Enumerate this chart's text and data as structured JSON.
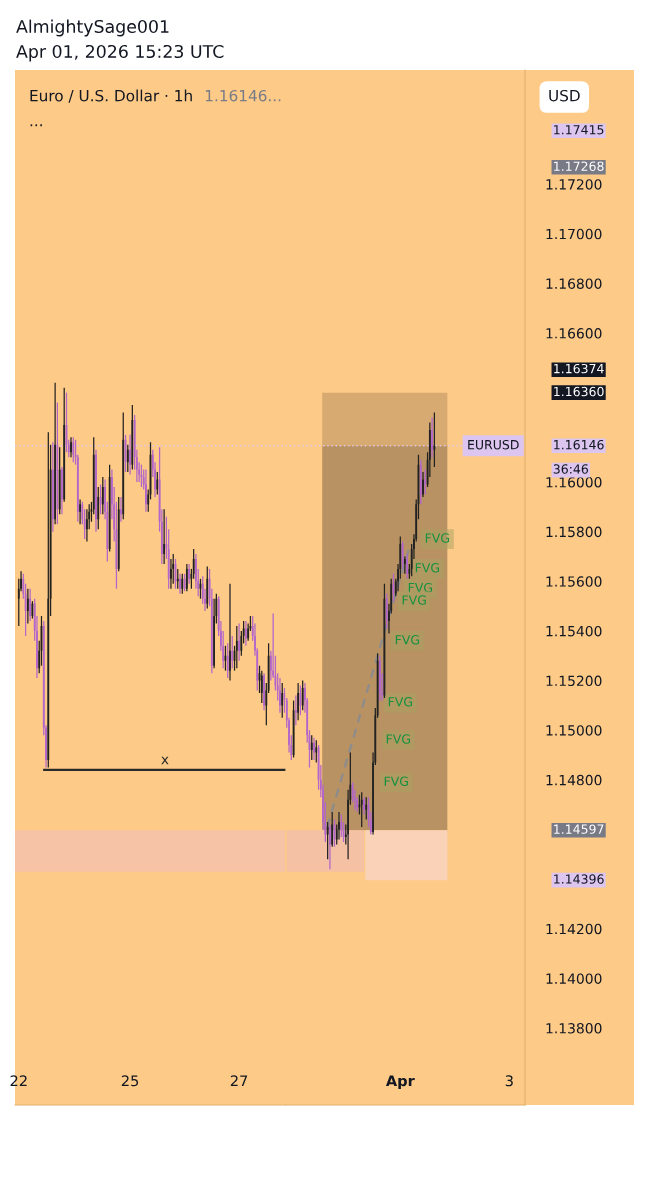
{
  "chart_data": [
    {
      "type": "candlestick",
      "title": "Euro / U.S. Dollar · 1h",
      "subtitle": "1.16146...",
      "annotations": [
        "AlmightySage001",
        "Apr 01, 2026 15:23 UTC",
        "..."
      ],
      "x": [
        "2026-03-22T23:00",
        "2026-03-23T00:00",
        "2026-03-23T01:00",
        "2026-03-23T02:00",
        "2026-03-23T03:00",
        "2026-03-23T04:00",
        "2026-03-23T05:00",
        "2026-03-23T06:00",
        "2026-03-23T07:00",
        "2026-03-23T08:00",
        "2026-03-23T09:00",
        "2026-03-23T10:00",
        "2026-03-23T11:00",
        "2026-03-23T12:00",
        "2026-03-23T13:00",
        "2026-03-23T14:00",
        "2026-03-23T15:00",
        "2026-03-23T16:00",
        "2026-03-23T17:00",
        "2026-03-23T18:00",
        "2026-03-23T19:00",
        "2026-03-23T20:00",
        "2026-03-23T21:00",
        "2026-03-23T22:00",
        "2026-03-23T23:00",
        "2026-03-24T00:00",
        "2026-03-24T01:00",
        "2026-03-24T02:00",
        "2026-03-24T03:00",
        "2026-03-24T04:00",
        "2026-03-24T05:00",
        "2026-03-24T06:00",
        "2026-03-24T07:00",
        "2026-03-24T08:00",
        "2026-03-24T09:00",
        "2026-03-24T10:00",
        "2026-03-24T11:00",
        "2026-03-24T12:00",
        "2026-03-24T13:00",
        "2026-03-24T14:00",
        "2026-03-24T15:00",
        "2026-03-24T16:00",
        "2026-03-24T17:00",
        "2026-03-24T18:00",
        "2026-03-24T19:00",
        "2026-03-24T20:00",
        "2026-03-24T21:00",
        "2026-03-24T22:00",
        "2026-03-24T23:00",
        "2026-03-25T00:00",
        "2026-03-25T01:00",
        "2026-03-25T02:00",
        "2026-03-25T03:00",
        "2026-03-25T04:00",
        "2026-03-25T05:00",
        "2026-03-25T06:00",
        "2026-03-25T07:00",
        "2026-03-25T08:00",
        "2026-03-25T09:00",
        "2026-03-25T10:00",
        "2026-03-25T11:00",
        "2026-03-25T12:00",
        "2026-03-25T13:00",
        "2026-03-25T14:00",
        "2026-03-25T15:00",
        "2026-03-25T16:00",
        "2026-03-25T17:00",
        "2026-03-25T18:00",
        "2026-03-25T19:00",
        "2026-03-25T20:00",
        "2026-03-25T21:00",
        "2026-03-25T22:00",
        "2026-03-25T23:00",
        "2026-03-26T00:00",
        "2026-03-26T01:00",
        "2026-03-26T02:00",
        "2026-03-26T03:00",
        "2026-03-26T04:00",
        "2026-03-26T05:00",
        "2026-03-26T06:00",
        "2026-03-26T07:00",
        "2026-03-26T08:00",
        "2026-03-26T09:00",
        "2026-03-26T10:00",
        "2026-03-26T11:00",
        "2026-03-26T12:00",
        "2026-03-26T13:00",
        "2026-03-26T14:00",
        "2026-03-26T15:00",
        "2026-03-26T16:00",
        "2026-03-26T17:00",
        "2026-03-26T18:00",
        "2026-03-26T19:00",
        "2026-03-26T20:00",
        "2026-03-26T21:00",
        "2026-03-26T22:00",
        "2026-03-26T23:00",
        "2026-03-27T00:00",
        "2026-03-27T01:00",
        "2026-03-27T02:00",
        "2026-03-27T03:00",
        "2026-03-27T04:00",
        "2026-03-27T05:00",
        "2026-03-27T06:00",
        "2026-03-27T07:00",
        "2026-03-27T08:00",
        "2026-03-27T09:00",
        "2026-03-27T10:00",
        "2026-03-27T11:00",
        "2026-03-27T12:00",
        "2026-03-27T13:00",
        "2026-03-27T14:00",
        "2026-03-27T15:00",
        "2026-03-27T16:00",
        "2026-03-27T17:00",
        "2026-03-27T18:00",
        "2026-03-27T19:00",
        "2026-03-27T20:00"
      ],
      "ohlc": [
        [
          1.1553,
          1.1561,
          1.1542,
          1.1557
        ],
        [
          1.1557,
          1.1564,
          1.1556,
          1.1561
        ],
        [
          1.1561,
          1.1563,
          1.1553,
          1.1555
        ],
        [
          1.1555,
          1.1559,
          1.1538,
          1.1548
        ],
        [
          1.1548,
          1.1557,
          1.1543,
          1.1553
        ],
        [
          1.1553,
          1.1557,
          1.1544,
          1.1546
        ],
        [
          1.1546,
          1.1552,
          1.1545,
          1.1551
        ],
        [
          1.1551,
          1.1553,
          1.1536,
          1.154
        ],
        [
          1.154,
          1.1546,
          1.1521,
          1.1525
        ],
        [
          1.1525,
          1.1536,
          1.1523,
          1.1532
        ],
        [
          1.1532,
          1.1546,
          1.1526,
          1.1542
        ],
        [
          1.1542,
          1.1544,
          1.1498,
          1.1501
        ],
        [
          1.1501,
          1.1502,
          1.1485,
          1.1488
        ],
        [
          1.1488,
          1.162,
          1.1485,
          1.1553
        ],
        [
          1.1553,
          1.1615,
          1.1546,
          1.1605
        ],
        [
          1.1605,
          1.1616,
          1.158,
          1.1585
        ],
        [
          1.1585,
          1.164,
          1.1583,
          1.1615
        ],
        [
          1.1615,
          1.1632,
          1.1583,
          1.1589
        ],
        [
          1.1589,
          1.1614,
          1.1587,
          1.1605
        ],
        [
          1.1605,
          1.1606,
          1.1587,
          1.1593
        ],
        [
          1.1593,
          1.1638,
          1.1592,
          1.1623
        ],
        [
          1.1623,
          1.1636,
          1.1612,
          1.1615
        ],
        [
          1.1615,
          1.1617,
          1.161,
          1.1612
        ],
        [
          1.1612,
          1.1618,
          1.161,
          1.1616
        ],
        [
          1.1616,
          1.1618,
          1.1608,
          1.1611
        ],
        [
          1.1611,
          1.1617,
          1.1607,
          1.161
        ],
        [
          1.161,
          1.1611,
          1.1584,
          1.1588
        ],
        [
          1.1588,
          1.1593,
          1.1583,
          1.1591
        ],
        [
          1.1591,
          1.1592,
          1.1583,
          1.1585
        ],
        [
          1.1585,
          1.1589,
          1.1577,
          1.1581
        ],
        [
          1.1581,
          1.1589,
          1.1576,
          1.1585
        ],
        [
          1.1585,
          1.1591,
          1.1581,
          1.1588
        ],
        [
          1.1588,
          1.1592,
          1.1584,
          1.1589
        ],
        [
          1.1589,
          1.1618,
          1.1587,
          1.1611
        ],
        [
          1.1611,
          1.1613,
          1.158,
          1.1585
        ],
        [
          1.1585,
          1.1598,
          1.1581,
          1.1594
        ],
        [
          1.1594,
          1.1599,
          1.1587,
          1.1591
        ],
        [
          1.1591,
          1.1602,
          1.1587,
          1.1598
        ],
        [
          1.1598,
          1.1601,
          1.1585,
          1.1588
        ],
        [
          1.1588,
          1.1592,
          1.1568,
          1.1573
        ],
        [
          1.1573,
          1.1607,
          1.1572,
          1.1602
        ],
        [
          1.1602,
          1.1605,
          1.1585,
          1.1591
        ],
        [
          1.1591,
          1.1598,
          1.1576,
          1.1581
        ],
        [
          1.1581,
          1.1592,
          1.1557,
          1.1565
        ],
        [
          1.1565,
          1.1594,
          1.1564,
          1.1589
        ],
        [
          1.1589,
          1.1594,
          1.1584,
          1.1587
        ],
        [
          1.1587,
          1.1628,
          1.1585,
          1.1617
        ],
        [
          1.1617,
          1.1619,
          1.1604,
          1.1608
        ],
        [
          1.1608,
          1.1615,
          1.1604,
          1.1613
        ],
        [
          1.1613,
          1.1619,
          1.1603,
          1.1607
        ],
        [
          1.1607,
          1.1631,
          1.1605,
          1.1625
        ],
        [
          1.1625,
          1.1627,
          1.1605,
          1.161
        ],
        [
          1.161,
          1.1613,
          1.16,
          1.1605
        ],
        [
          1.1605,
          1.1608,
          1.16,
          1.1603
        ],
        [
          1.1603,
          1.1607,
          1.1598,
          1.1602
        ],
        [
          1.1602,
          1.1605,
          1.1597,
          1.1599
        ],
        [
          1.1599,
          1.1605,
          1.1588,
          1.1591
        ],
        [
          1.1591,
          1.1597,
          1.1588,
          1.1595
        ],
        [
          1.1595,
          1.1616,
          1.1593,
          1.1611
        ],
        [
          1.1611,
          1.1613,
          1.1602,
          1.1605
        ],
        [
          1.1605,
          1.1608,
          1.1594,
          1.1597
        ],
        [
          1.1597,
          1.1604,
          1.1595,
          1.1601
        ],
        [
          1.1601,
          1.1614,
          1.158,
          1.1584
        ],
        [
          1.1584,
          1.1589,
          1.1567,
          1.1571
        ],
        [
          1.1571,
          1.1589,
          1.1567,
          1.1575
        ],
        [
          1.1575,
          1.1586,
          1.1569,
          1.1573
        ],
        [
          1.1573,
          1.1581,
          1.1557,
          1.1561
        ],
        [
          1.1561,
          1.1569,
          1.1557,
          1.1565
        ],
        [
          1.1565,
          1.1571,
          1.1559,
          1.1567
        ],
        [
          1.1567,
          1.1569,
          1.1557,
          1.156
        ],
        [
          1.156,
          1.1565,
          1.1557,
          1.1561
        ],
        [
          1.1561,
          1.1563,
          1.1555,
          1.1557
        ],
        [
          1.1557,
          1.1563,
          1.1555,
          1.1561
        ],
        [
          1.1561,
          1.1563,
          1.1556,
          1.1557
        ],
        [
          1.1557,
          1.1567,
          1.1556,
          1.1565
        ],
        [
          1.1565,
          1.1567,
          1.1559,
          1.1561
        ],
        [
          1.1561,
          1.1565,
          1.1557,
          1.1563
        ],
        [
          1.1563,
          1.1573,
          1.1561,
          1.1569
        ],
        [
          1.1569,
          1.1571,
          1.1557,
          1.156
        ],
        [
          1.156,
          1.1565,
          1.1554,
          1.1557
        ],
        [
          1.1557,
          1.1561,
          1.1553,
          1.1559
        ],
        [
          1.1559,
          1.1562,
          1.1551,
          1.1553
        ],
        [
          1.1553,
          1.1557,
          1.1548,
          1.1551
        ],
        [
          1.1551,
          1.1566,
          1.1549,
          1.1561
        ],
        [
          1.1561,
          1.1565,
          1.155,
          1.1553
        ],
        [
          1.1553,
          1.1557,
          1.1523,
          1.1526
        ],
        [
          1.1526,
          1.1553,
          1.1525,
          1.1546
        ],
        [
          1.1546,
          1.1555,
          1.1543,
          1.1553
        ],
        [
          1.1553,
          1.1554,
          1.1538,
          1.154
        ],
        [
          1.154,
          1.1544,
          1.1532,
          1.1534
        ],
        [
          1.1534,
          1.154,
          1.1525,
          1.1528
        ],
        [
          1.1528,
          1.1534,
          1.1524,
          1.153
        ],
        [
          1.153,
          1.1535,
          1.1521,
          1.1524
        ],
        [
          1.1524,
          1.1559,
          1.152,
          1.1532
        ],
        [
          1.1532,
          1.1538,
          1.1525,
          1.1528
        ],
        [
          1.1528,
          1.1534,
          1.1524,
          1.1532
        ],
        [
          1.1532,
          1.1542,
          1.1525,
          1.1536
        ],
        [
          1.1536,
          1.1543,
          1.1528,
          1.1532
        ],
        [
          1.1532,
          1.154,
          1.153,
          1.1538
        ],
        [
          1.1538,
          1.1544,
          1.1535,
          1.1541
        ],
        [
          1.1541,
          1.1544,
          1.1534,
          1.1537
        ],
        [
          1.1537,
          1.1543,
          1.1536,
          1.1541
        ],
        [
          1.1541,
          1.1546,
          1.154,
          1.1542
        ],
        [
          1.1542,
          1.1546,
          1.1536,
          1.1538
        ],
        [
          1.1538,
          1.1543,
          1.153,
          1.1532
        ],
        [
          1.1532,
          1.1533,
          1.1516,
          1.152
        ],
        [
          1.152,
          1.1526,
          1.1515,
          1.1523
        ],
        [
          1.1515,
          1.1524,
          1.1511,
          1.1522
        ],
        [
          1.1522,
          1.1523,
          1.1508,
          1.151
        ],
        [
          1.151,
          1.1519,
          1.1502,
          1.1516
        ],
        [
          1.1516,
          1.1535,
          1.1515,
          1.153
        ],
        [
          1.153,
          1.1532,
          1.152,
          1.1524
        ],
        [
          1.1524,
          1.1547,
          1.1521,
          1.1522
        ],
        [
          1.1522,
          1.153,
          1.1516,
          1.1518
        ],
        [
          1.1518,
          1.1523,
          1.1512,
          1.1516
        ],
        [
          1.1516,
          1.1521,
          1.1507,
          1.151
        ],
        [
          1.151,
          1.1519,
          1.1505,
          1.1515
        ],
        [
          1.1515,
          1.1517,
          1.1507,
          1.1512
        ]
      ],
      "colors": [
        "#222222",
        "#222222",
        "#b266cc",
        "#b266cc",
        "#222222",
        "#b266cc",
        "#222222",
        "#b266cc",
        "#b266cc",
        "#222222",
        "#222222",
        "#b266cc",
        "#b266cc",
        "#222222",
        "#222222",
        "#b266cc",
        "#222222",
        "#b266cc",
        "#222222",
        "#b266cc",
        "#222222",
        "#b266cc",
        "#b266cc",
        "#222222",
        "#b266cc",
        "#b266cc",
        "#b266cc",
        "#222222",
        "#b266cc",
        "#b266cc",
        "#222222",
        "#222222",
        "#222222",
        "#222222",
        "#b266cc",
        "#222222",
        "#b266cc",
        "#222222",
        "#b266cc",
        "#b266cc",
        "#222222",
        "#b266cc",
        "#b266cc",
        "#b266cc",
        "#222222",
        "#b266cc",
        "#222222",
        "#b266cc",
        "#222222",
        "#b266cc",
        "#222222",
        "#b266cc",
        "#b266cc",
        "#b266cc",
        "#b266cc",
        "#b266cc",
        "#b266cc",
        "#222222",
        "#222222",
        "#b266cc",
        "#b266cc",
        "#222222",
        "#b266cc",
        "#b266cc",
        "#222222",
        "#b266cc",
        "#b266cc",
        "#222222",
        "#222222",
        "#b266cc",
        "#222222",
        "#b266cc",
        "#222222",
        "#b266cc",
        "#222222",
        "#b266cc",
        "#222222",
        "#222222",
        "#b266cc",
        "#b266cc",
        "#222222",
        "#b266cc",
        "#b266cc",
        "#222222",
        "#b266cc",
        "#b266cc",
        "#222222",
        "#222222",
        "#b266cc",
        "#b266cc",
        "#b266cc",
        "#222222",
        "#b266cc",
        "#222222",
        "#b266cc",
        "#222222",
        "#222222",
        "#b266cc",
        "#222222",
        "#222222",
        "#b266cc",
        "#222222",
        "#222222",
        "#b266cc",
        "#b266cc",
        "#b266cc",
        "#222222",
        "#222222",
        "#b266cc",
        "#222222",
        "#222222",
        "#b266cc",
        "#b266cc",
        "#b266cc",
        "#b266cc",
        "#b266cc",
        "#222222",
        "#b266cc"
      ],
      "series": [
        {
          "type": "line",
          "x": [
            "2026-03-22T21:20",
            "2026-03-27T20:30"
          ],
          "values": [
            null,
            null
          ],
          "lower": [
            1.1443,
            1.1443
          ],
          "upper": [
            1.14597,
            1.14597
          ],
          "color": "#f6c3a6"
        },
        {
          "type": "line",
          "name": "x",
          "x": [
            "2026-03-23T10:12",
            "2026-03-27T20:30"
          ],
          "values": [
            1.1484,
            1.1484
          ],
          "color": "#2a2a2a"
        }
      ],
      "ref_lines": [
        {
          "axis": "y",
          "value": 1.16146,
          "color": "#dcc5ee",
          "line_style": "dotted"
        }
      ],
      "xlim": [
        "2026-03-22T21:20",
        "2026-03-27T20:30"
      ],
      "xticks": [
        {
          "value": "2026-03-22T23:00",
          "label": "22"
        },
        {
          "value": "2026-03-25",
          "label": "25"
        },
        {
          "value": "2026-03-27",
          "label": "27"
        }
      ],
      "ylim": [
        1.1349,
        1.1766
      ],
      "tick_labels": "x"
    },
    {
      "type": "candlestick",
      "ylabel": "USD",
      "annotations": [
        "1.17415",
        "1.17268",
        "1.16374",
        "1.16360",
        "1.16146",
        "1.14597",
        "1.14396",
        "36:46",
        {
          "text": "FVG",
          "x": "2026-04-01T16:18",
          "y": 1.1577
        },
        {
          "text": "FVG",
          "x": "2026-04-01T11:54",
          "y": 1.1565
        },
        {
          "text": "FVG",
          "x": "2026-04-01T08:48",
          "y": 1.1557
        },
        {
          "text": "FVG",
          "x": "2026-04-01T06:06",
          "y": 1.1552
        },
        {
          "text": "FVG",
          "x": "2026-04-01T03:06",
          "y": 1.1536
        },
        {
          "text": "FVG",
          "x": "2026-04-01T00:00",
          "y": 1.1511
        },
        {
          "text": "FVG",
          "x": "2026-03-31T23:06",
          "y": 1.1496
        },
        {
          "text": "FVG",
          "x": "2026-03-31T22:12",
          "y": 1.1479
        }
      ],
      "x": [
        "2026-03-29T22:00",
        "2026-03-29T23:00",
        "2026-03-30T00:00",
        "2026-03-30T01:00",
        "2026-03-30T02:00",
        "2026-03-30T03:00",
        "2026-03-30T04:00",
        "2026-03-30T05:00",
        "2026-03-30T06:00",
        "2026-03-30T07:00",
        "2026-03-30T08:00",
        "2026-03-30T09:00",
        "2026-03-30T10:00",
        "2026-03-30T11:00",
        "2026-03-30T12:00",
        "2026-03-30T13:00",
        "2026-03-30T14:00",
        "2026-03-30T15:00",
        "2026-03-30T16:00",
        "2026-03-30T17:00",
        "2026-03-30T18:00",
        "2026-03-30T19:00",
        "2026-03-30T20:00",
        "2026-03-30T21:00",
        "2026-03-30T22:00",
        "2026-03-30T23:00",
        "2026-03-31T00:00",
        "2026-03-31T01:00",
        "2026-03-31T02:00",
        "2026-03-31T03:00",
        "2026-03-31T04:00",
        "2026-03-31T05:00",
        "2026-03-31T06:00",
        "2026-03-31T07:00",
        "2026-03-31T08:00",
        "2026-03-31T09:00",
        "2026-03-31T10:00",
        "2026-03-31T11:00",
        "2026-03-31T12:00",
        "2026-03-31T13:00",
        "2026-03-31T14:00",
        "2026-03-31T15:00",
        "2026-03-31T16:00",
        "2026-03-31T17:00",
        "2026-03-31T18:00",
        "2026-03-31T19:00",
        "2026-03-31T20:00",
        "2026-03-31T21:00",
        "2026-03-31T22:00",
        "2026-03-31T23:00",
        "2026-04-01T00:00",
        "2026-04-01T01:00",
        "2026-04-01T02:00",
        "2026-04-01T03:00",
        "2026-04-01T04:00",
        "2026-04-01T05:00",
        "2026-04-01T06:00",
        "2026-04-01T07:00",
        "2026-04-01T08:00",
        "2026-04-01T09:00",
        "2026-04-01T10:00",
        "2026-04-01T11:00",
        "2026-04-01T12:00",
        "2026-04-01T13:00",
        "2026-04-01T14:00",
        "2026-04-01T15:00"
      ],
      "ohlc": [
        [
          1.1512,
          1.1513,
          1.1501,
          1.1504
        ],
        [
          1.1504,
          1.1505,
          1.1491,
          1.1494
        ],
        [
          1.1494,
          1.1498,
          1.1488,
          1.149
        ],
        [
          1.149,
          1.1512,
          1.1489,
          1.1508
        ],
        [
          1.1508,
          1.1514,
          1.1502,
          1.1507
        ],
        [
          1.1507,
          1.1519,
          1.1504,
          1.1515
        ],
        [
          1.1515,
          1.1518,
          1.1506,
          1.151
        ],
        [
          1.151,
          1.152,
          1.1508,
          1.1517
        ],
        [
          1.1517,
          1.1519,
          1.1507,
          1.1512
        ],
        [
          1.1512,
          1.1513,
          1.1495,
          1.1498
        ],
        [
          1.1498,
          1.15,
          1.1485,
          1.1492
        ],
        [
          1.1492,
          1.1498,
          1.1488,
          1.1495
        ],
        [
          1.1495,
          1.1497,
          1.1488,
          1.1491
        ],
        [
          1.1491,
          1.1496,
          1.1487,
          1.1493
        ],
        [
          1.1493,
          1.1494,
          1.1476,
          1.148
        ],
        [
          1.148,
          1.1486,
          1.1473,
          1.1476
        ],
        [
          1.1476,
          1.1478,
          1.146,
          1.1463
        ],
        [
          1.1463,
          1.1471,
          1.1455,
          1.1458
        ],
        [
          1.1458,
          1.1463,
          1.1448,
          1.1461
        ],
        [
          1.1461,
          1.1462,
          1.1444,
          1.1454
        ],
        [
          1.1454,
          1.1467,
          1.1453,
          1.1462
        ],
        [
          1.1462,
          1.1464,
          1.1453,
          1.1456
        ],
        [
          1.1456,
          1.1462,
          1.1454,
          1.146
        ],
        [
          1.146,
          1.1467,
          1.1456,
          1.1463
        ],
        [
          1.1463,
          1.1466,
          1.1457,
          1.146
        ],
        [
          1.146,
          1.1463,
          1.1455,
          1.1457
        ],
        [
          1.1457,
          1.1462,
          1.1454,
          1.1458
        ],
        [
          1.1458,
          1.1476,
          1.1448,
          1.1472
        ],
        [
          1.1472,
          1.1491,
          1.147,
          1.1478
        ],
        [
          1.1478,
          1.1479,
          1.1471,
          1.1473
        ],
        [
          1.1473,
          1.1476,
          1.1468,
          1.1472
        ],
        [
          1.1472,
          1.1473,
          1.1467,
          1.1469
        ],
        [
          1.1469,
          1.1474,
          1.1466,
          1.147
        ],
        [
          1.147,
          1.1475,
          1.1461,
          1.1472
        ],
        [
          1.1472,
          1.1473,
          1.1466,
          1.1468
        ],
        [
          1.1468,
          1.1473,
          1.1464,
          1.147
        ],
        [
          1.147,
          1.1473,
          1.1461,
          1.1464
        ],
        [
          1.1464,
          1.1467,
          1.1458,
          1.1459
        ],
        [
          1.1459,
          1.1491,
          1.1458,
          1.1487
        ],
        [
          1.1487,
          1.1509,
          1.1486,
          1.1506
        ],
        [
          1.1506,
          1.1531,
          1.1505,
          1.1528
        ],
        [
          1.1528,
          1.153,
          1.1512,
          1.1515
        ],
        [
          1.1515,
          1.1523,
          1.1512,
          1.1514
        ],
        [
          1.1514,
          1.1559,
          1.1513,
          1.1553
        ],
        [
          1.1553,
          1.1555,
          1.1541,
          1.1544
        ],
        [
          1.1544,
          1.1551,
          1.1539,
          1.1548
        ],
        [
          1.1548,
          1.1561,
          1.1547,
          1.1559
        ],
        [
          1.1559,
          1.1563,
          1.1552,
          1.1555
        ],
        [
          1.1555,
          1.1561,
          1.1554,
          1.156
        ],
        [
          1.156,
          1.1567,
          1.1556,
          1.1565
        ],
        [
          1.1565,
          1.1578,
          1.1561,
          1.1575
        ],
        [
          1.1575,
          1.1576,
          1.1565,
          1.1567
        ],
        [
          1.1567,
          1.157,
          1.1563,
          1.1569
        ],
        [
          1.1569,
          1.1571,
          1.1561,
          1.1563
        ],
        [
          1.1563,
          1.1567,
          1.1561,
          1.1565
        ],
        [
          1.1565,
          1.1575,
          1.1562,
          1.1573
        ],
        [
          1.1573,
          1.1579,
          1.1569,
          1.1577
        ],
        [
          1.1577,
          1.1593,
          1.1576,
          1.1591
        ],
        [
          1.1591,
          1.1611,
          1.1585,
          1.1607
        ],
        [
          1.1607,
          1.1609,
          1.1591,
          1.1595
        ],
        [
          1.1595,
          1.1604,
          1.1594,
          1.1601
        ],
        [
          1.1601,
          1.1605,
          1.1595,
          1.1599
        ],
        [
          1.1599,
          1.1612,
          1.1598,
          1.1609
        ],
        [
          1.1609,
          1.1624,
          1.1602,
          1.1621
        ],
        [
          1.1621,
          1.1626,
          1.161,
          1.1613
        ],
        [
          1.1613,
          1.1628,
          1.1606,
          1.16146
        ]
      ],
      "colors": [
        "#b266cc",
        "#b266cc",
        "#b266cc",
        "#222222",
        "#b266cc",
        "#222222",
        "#b266cc",
        "#222222",
        "#b266cc",
        "#b266cc",
        "#b266cc",
        "#222222",
        "#b266cc",
        "#222222",
        "#b266cc",
        "#b266cc",
        "#b266cc",
        "#b266cc",
        "#222222",
        "#b266cc",
        "#222222",
        "#b266cc",
        "#222222",
        "#222222",
        "#b266cc",
        "#b266cc",
        "#222222",
        "#222222",
        "#222222",
        "#b266cc",
        "#b266cc",
        "#b266cc",
        "#222222",
        "#222222",
        "#b266cc",
        "#222222",
        "#b266cc",
        "#b266cc",
        "#222222",
        "#222222",
        "#222222",
        "#b266cc",
        "#b266cc",
        "#222222",
        "#b266cc",
        "#222222",
        "#222222",
        "#b266cc",
        "#222222",
        "#222222",
        "#222222",
        "#b266cc",
        "#222222",
        "#b266cc",
        "#222222",
        "#222222",
        "#222222",
        "#222222",
        "#222222",
        "#b266cc",
        "#222222",
        "#b266cc",
        "#222222",
        "#222222",
        "#b266cc",
        "#222222"
      ],
      "series": [
        {
          "type": "line",
          "x": [
            "2026-03-30T13:36",
            "2026-04-01T20:42"
          ],
          "values": [
            null,
            null
          ],
          "lower": [
            1.16146,
            1.16146
          ],
          "upper": [
            1.1636,
            1.1636
          ],
          "color": "#d6aa70"
        },
        {
          "type": "line",
          "x": [
            "2026-03-30T13:36",
            "2026-04-01T20:42"
          ],
          "values": [
            null,
            null
          ],
          "lower": [
            1.14597,
            1.14597
          ],
          "upper": [
            1.16146,
            1.16146
          ],
          "color": "#b89262"
        },
        {
          "type": "line",
          "x": [
            "2026-03-29T22:00",
            "2026-03-31T08:00"
          ],
          "values": [
            null,
            null
          ],
          "lower": [
            1.1443,
            1.1443
          ],
          "upper": [
            1.14597,
            1.14597
          ],
          "color": "#f5c1a4"
        },
        {
          "type": "line",
          "x": [
            "2026-03-31T08:36",
            "2026-04-01T20:42"
          ],
          "values": [
            null,
            null
          ],
          "lower": [
            1.14396,
            1.14396
          ],
          "upper": [
            1.14597,
            1.14597
          ],
          "color": "#fad2b8"
        },
        {
          "type": "line",
          "x": [
            "2026-03-30T15:48",
            "2026-04-01T04:24"
          ],
          "values": [
            1.1461,
            1.1575
          ],
          "color": "#8c8c8c",
          "line_style": "dashed"
        }
      ],
      "ref_lines": [
        {
          "axis": "y",
          "value": 1.16146,
          "label": "EURUSD",
          "color": "#dcc5ee",
          "line_style": "dotted"
        }
      ],
      "xlim": [
        "2026-03-29T21:30",
        "2026-04-03T06:54"
      ],
      "xticks": [
        {
          "value": "2026-04-01",
          "label": "Apr"
        },
        {
          "value": "2026-04-03",
          "label": "3"
        }
      ],
      "ylim": [
        1.1349,
        1.1766
      ],
      "yticks": [
        {
          "value": 1.172,
          "label": "1.17200"
        },
        {
          "value": 1.17,
          "label": "1.17000"
        },
        {
          "value": 1.168,
          "label": "1.16800"
        },
        {
          "value": 1.166,
          "label": "1.16600"
        },
        {
          "value": 1.16,
          "label": "1.16000"
        },
        {
          "value": 1.158,
          "label": "1.15800"
        },
        {
          "value": 1.156,
          "label": "1.15600"
        },
        {
          "value": 1.154,
          "label": "1.15400"
        },
        {
          "value": 1.152,
          "label": "1.15200"
        },
        {
          "value": 1.15,
          "label": "1.15000"
        },
        {
          "value": 1.148,
          "label": "1.14800"
        },
        {
          "value": 1.142,
          "label": "1.14200"
        },
        {
          "value": 1.14,
          "label": "1.14000"
        },
        {
          "value": 1.138,
          "label": "1.13800"
        }
      ]
    }
  ]
}
